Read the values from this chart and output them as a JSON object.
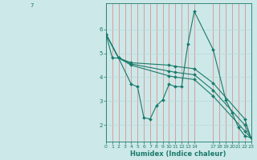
{
  "xlabel": "Humidex (Indice chaleur)",
  "bg_color": "#cce8e8",
  "line_color": "#1a7a6a",
  "grid_color_v": "#e08080",
  "grid_color_h": "#b8d8d8",
  "series": [
    {
      "x": [
        0,
        1,
        2,
        4,
        5,
        6,
        7,
        8,
        9,
        10,
        11,
        12,
        13,
        14,
        17,
        19,
        20,
        21,
        22,
        23
      ],
      "y": [
        5.8,
        4.8,
        4.8,
        3.7,
        3.6,
        2.3,
        2.25,
        2.8,
        3.05,
        3.7,
        3.6,
        3.6,
        5.4,
        6.75,
        5.15,
        3.05,
        2.5,
        1.9,
        1.55,
        1.45
      ]
    },
    {
      "x": [
        0,
        2,
        4,
        10,
        11,
        14,
        17,
        22,
        23
      ],
      "y": [
        5.8,
        4.8,
        4.6,
        4.5,
        4.45,
        4.35,
        3.75,
        2.25,
        1.45
      ]
    },
    {
      "x": [
        0,
        2,
        4,
        10,
        11,
        14,
        17,
        22,
        23
      ],
      "y": [
        5.8,
        4.8,
        4.55,
        4.25,
        4.2,
        4.1,
        3.45,
        2.0,
        1.45
      ]
    },
    {
      "x": [
        0,
        2,
        4,
        10,
        11,
        14,
        17,
        22,
        23
      ],
      "y": [
        5.8,
        4.8,
        4.5,
        4.05,
        4.0,
        3.9,
        3.2,
        1.75,
        1.45
      ]
    }
  ],
  "xlim": [
    0,
    23
  ],
  "ylim": [
    1.3,
    7.1
  ],
  "xticks": [
    0,
    1,
    2,
    3,
    4,
    5,
    6,
    7,
    8,
    9,
    10,
    11,
    12,
    13,
    14,
    17,
    18,
    19,
    20,
    21,
    22,
    23
  ],
  "yticks": [
    2,
    3,
    4,
    5,
    6
  ]
}
